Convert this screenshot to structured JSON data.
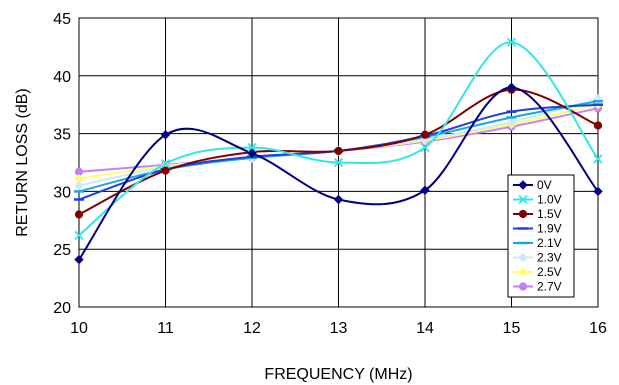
{
  "chart_data": {
    "type": "line",
    "xlabel": "FREQUENCY (MHz)",
    "ylabel": "RETURN LOSS (dB)",
    "xlim": [
      10,
      16
    ],
    "ylim": [
      20,
      45
    ],
    "x_ticks": [
      10,
      11,
      12,
      13,
      14,
      15,
      16
    ],
    "y_ticks": [
      20,
      25,
      30,
      35,
      40,
      45
    ],
    "grid": "vertical and horizontal major gridlines",
    "smooth": true,
    "legend_position": "inside-bottom-right",
    "x": [
      10,
      11,
      12,
      13,
      14,
      15,
      16
    ],
    "series": [
      {
        "name": "0V",
        "values": [
          24.1,
          34.9,
          33.3,
          29.3,
          30.1,
          39.0,
          30.0
        ],
        "color": "#000080",
        "marker": "diamond"
      },
      {
        "name": "1.0V",
        "values": [
          26.2,
          32.4,
          33.8,
          32.5,
          33.8,
          42.9,
          32.8
        ],
        "color": "#33e6e6",
        "marker": "x"
      },
      {
        "name": "1.5V",
        "values": [
          28.0,
          31.8,
          33.4,
          33.5,
          34.9,
          38.8,
          35.7
        ],
        "color": "#800000",
        "marker": "circle"
      },
      {
        "name": "1.9V",
        "values": [
          29.3,
          31.9,
          33.0,
          33.5,
          34.8,
          36.9,
          37.5
        ],
        "color": "#1f3fd8",
        "marker": "dash"
      },
      {
        "name": "2.1V",
        "values": [
          30.0,
          31.9,
          32.9,
          33.5,
          34.7,
          36.4,
          37.8
        ],
        "color": "#1aa8e0",
        "marker": "dash"
      },
      {
        "name": "2.3V",
        "values": [
          30.5,
          32.1,
          32.9,
          33.5,
          34.5,
          36.0,
          38.0
        ],
        "color": "#cde8ff",
        "marker": "diamond"
      },
      {
        "name": "2.5V",
        "values": [
          31.1,
          32.2,
          32.9,
          33.5,
          34.4,
          35.8,
          37.5
        ],
        "color": "#ffff66",
        "marker": "diamond"
      },
      {
        "name": "2.7V",
        "values": [
          31.7,
          32.3,
          32.9,
          33.5,
          34.3,
          35.6,
          37.2
        ],
        "color": "#c080ff",
        "marker": "circle"
      }
    ]
  }
}
